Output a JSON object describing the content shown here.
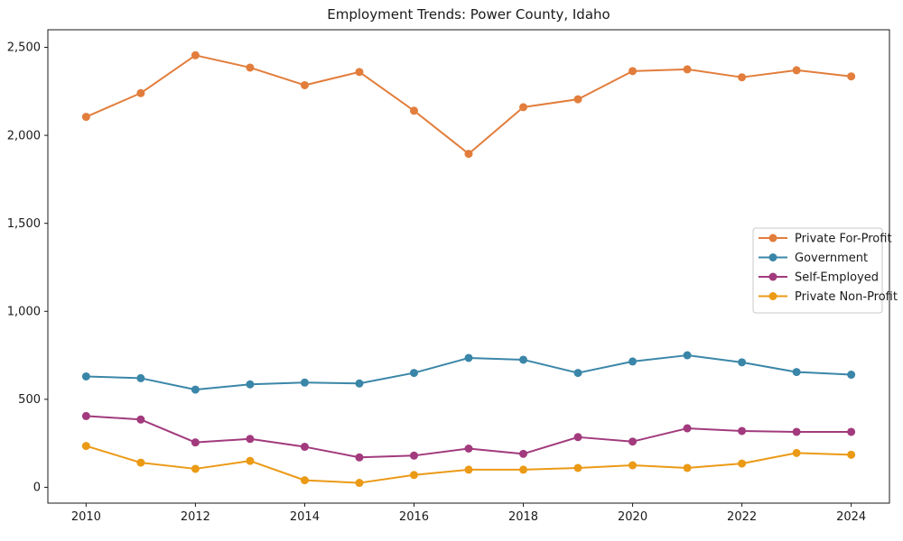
{
  "figure": {
    "title": "Employment Trends: Power County, Idaho",
    "background_color": "#ffffff",
    "frame_color": "#1a1a1a",
    "text_color": "#1a1a1a"
  },
  "chart_data": {
    "type": "line",
    "title": "Employment Trends: Power County, Idaho",
    "xlabel": "",
    "ylabel": "",
    "grid": false,
    "marker": "circle",
    "x": [
      2010,
      2011,
      2012,
      2013,
      2014,
      2015,
      2016,
      2017,
      2018,
      2019,
      2020,
      2021,
      2022,
      2023,
      2024
    ],
    "series": [
      {
        "name": "Private For-Profit",
        "color": "#e27d3c",
        "values": [
          2105,
          2240,
          2455,
          2385,
          2285,
          2360,
          2140,
          1895,
          2160,
          2205,
          2365,
          2375,
          2330,
          2370,
          2335
        ]
      },
      {
        "name": "Government",
        "color": "#3a86a8",
        "values": [
          630,
          620,
          555,
          585,
          595,
          590,
          650,
          735,
          725,
          650,
          715,
          750,
          710,
          655,
          640
        ]
      },
      {
        "name": "Self-Employed",
        "color": "#a23a7d",
        "values": [
          405,
          385,
          255,
          275,
          230,
          170,
          180,
          220,
          190,
          285,
          260,
          335,
          320,
          315,
          315
        ]
      },
      {
        "name": "Private Non-Profit",
        "color": "#eb9a16",
        "values": [
          235,
          140,
          105,
          150,
          40,
          25,
          70,
          100,
          100,
          110,
          125,
          110,
          135,
          195,
          185
        ]
      }
    ],
    "xlim": [
      2009.3,
      2024.7
    ],
    "ylim": [
      -90,
      2600
    ],
    "x_ticks": [
      2010,
      2012,
      2014,
      2016,
      2018,
      2020,
      2022,
      2024
    ],
    "x_tick_labels": [
      "2010",
      "2012",
      "2014",
      "2016",
      "2018",
      "2020",
      "2022",
      "2024"
    ],
    "y_ticks": [
      0,
      500,
      1000,
      1500,
      2000,
      2500
    ],
    "y_tick_labels": [
      "0",
      "500",
      "1,000",
      "1,500",
      "2,000",
      "2,500"
    ],
    "legend": {
      "position": "center-right",
      "entries": [
        "Private For-Profit",
        "Government",
        "Self-Employed",
        "Private Non-Profit"
      ]
    }
  }
}
